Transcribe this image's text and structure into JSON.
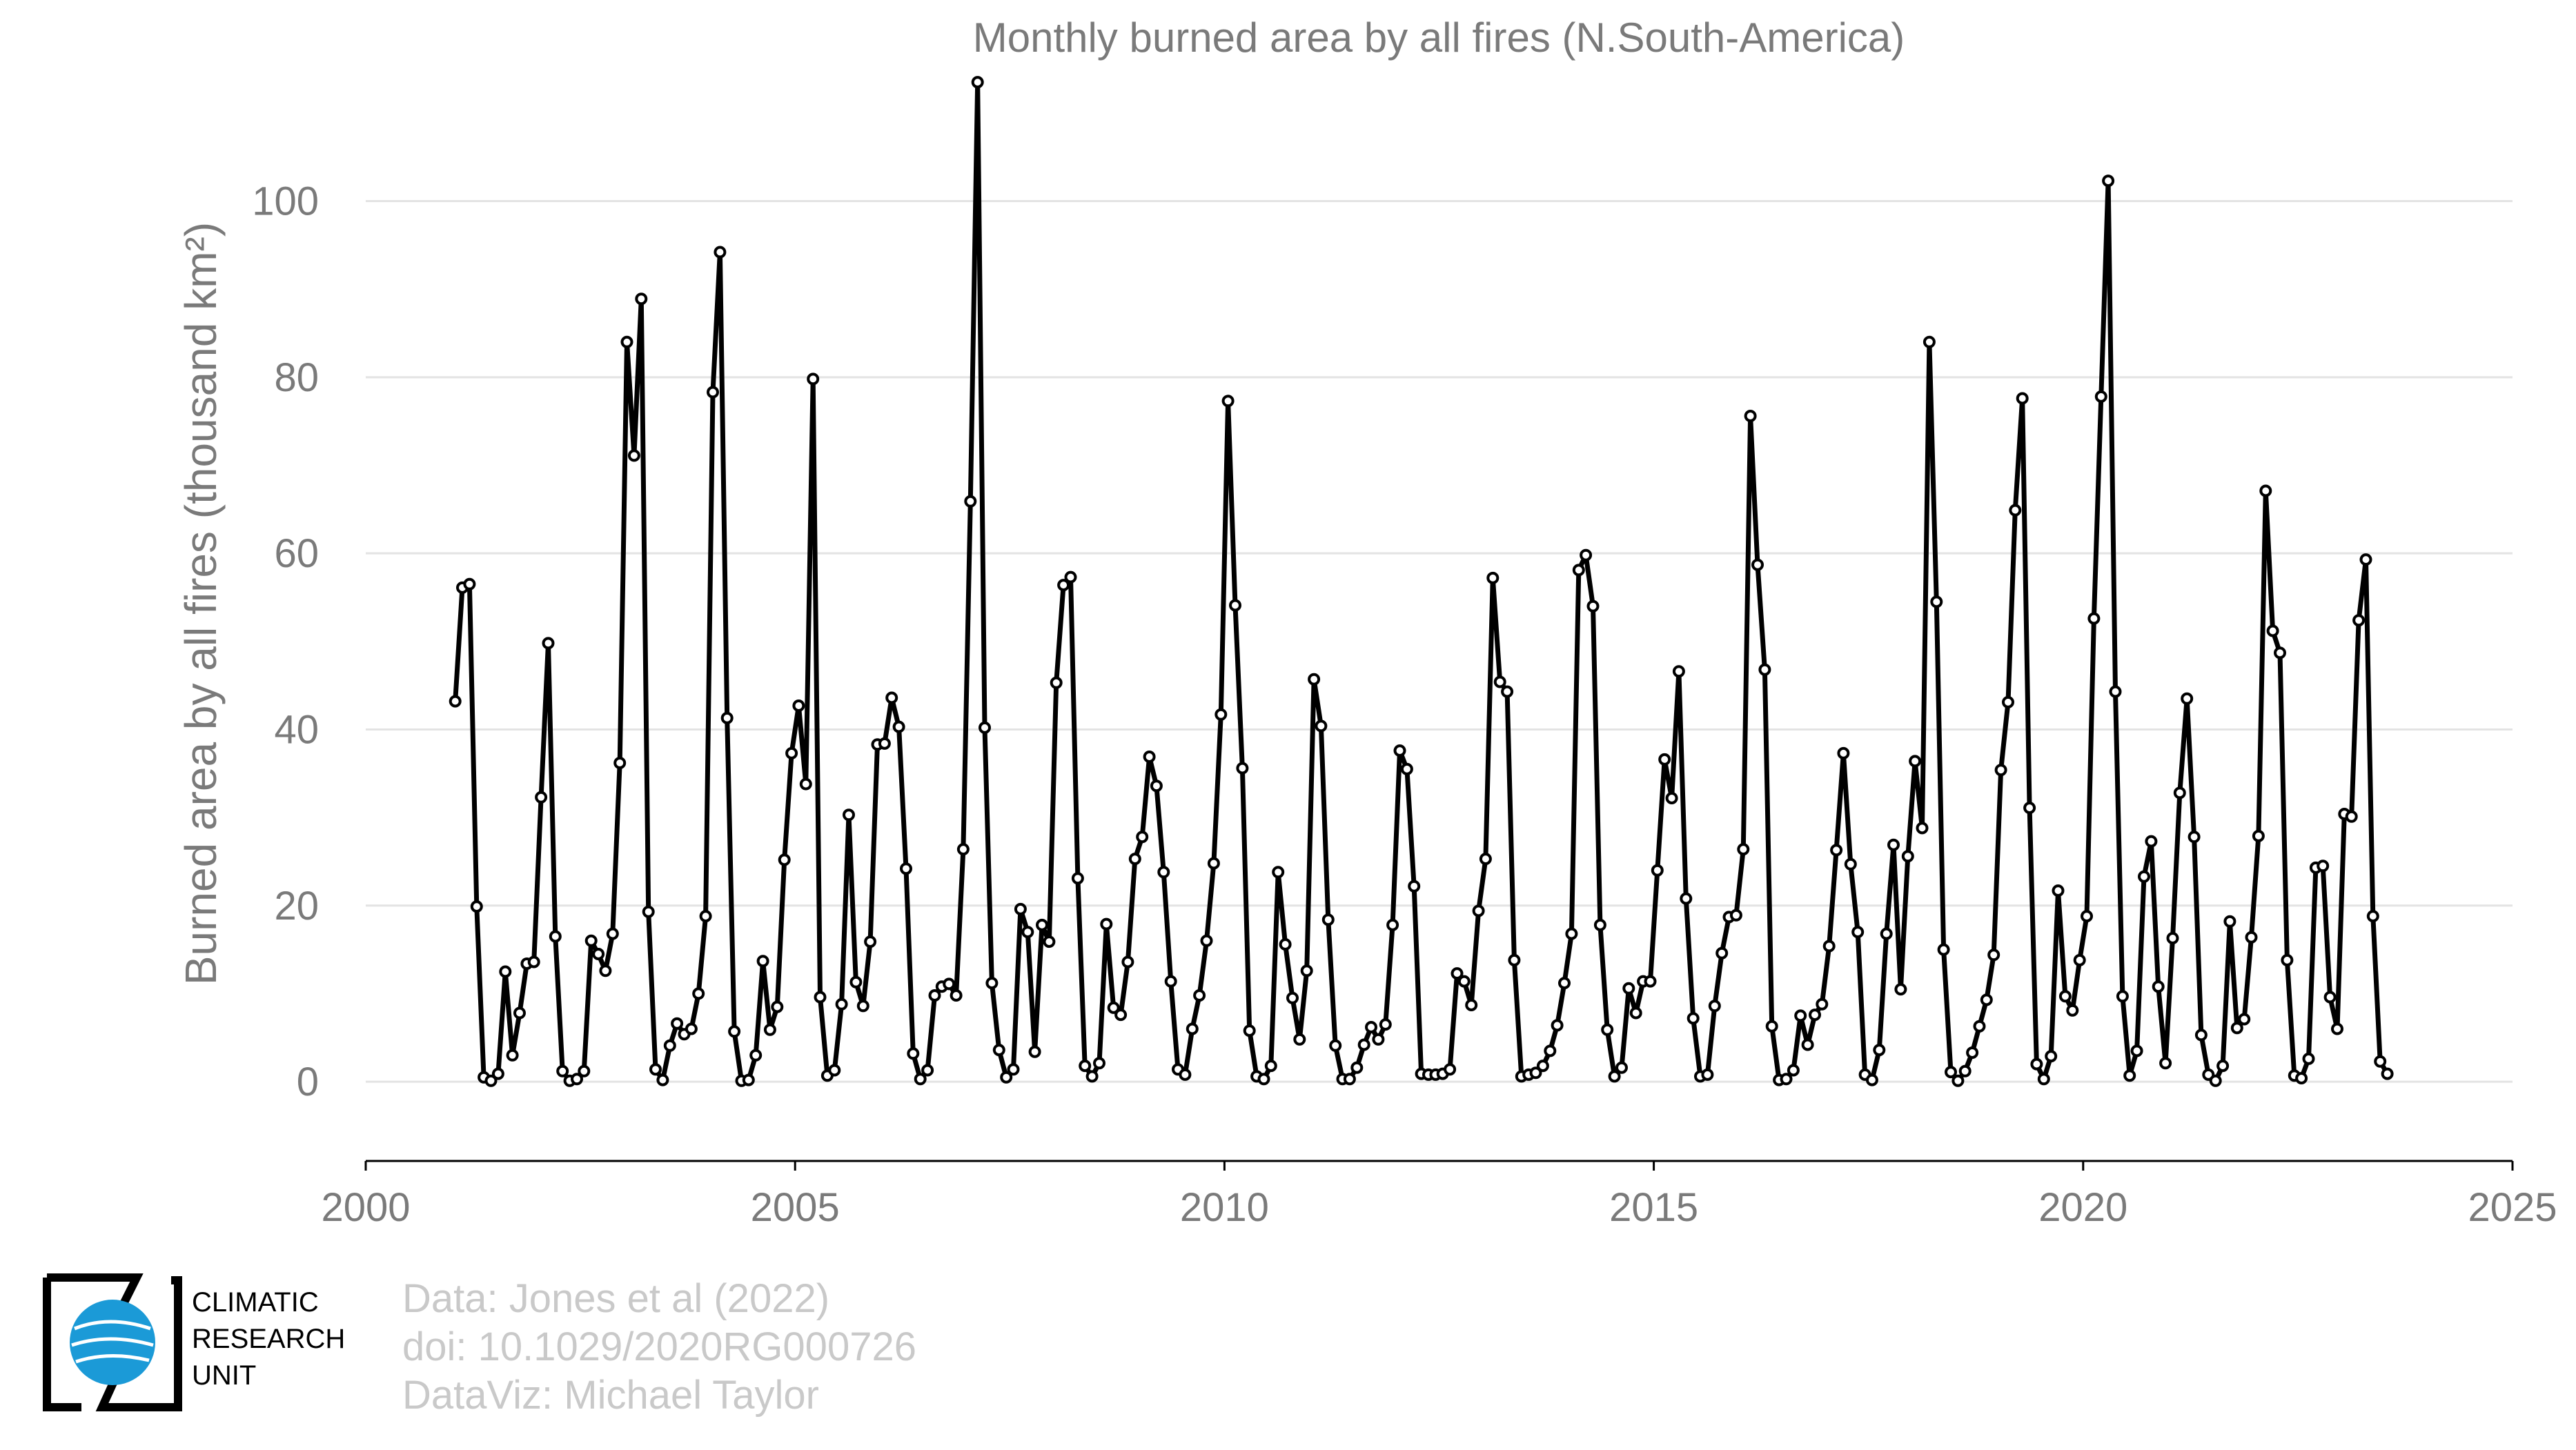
{
  "chart_data": {
    "type": "line",
    "title": "Monthly burned area by all fires (N.South-America)",
    "xlabel": "",
    "ylabel": "Burned area by all fires (thousand km²)",
    "xlim": [
      2000,
      2025
    ],
    "ylim": [
      -9,
      115
    ],
    "xticks": [
      2000,
      2005,
      2010,
      2015,
      2020,
      2025
    ],
    "yticks": [
      0,
      20,
      40,
      60,
      80,
      100
    ],
    "grid": "horizontal",
    "series": [
      {
        "x_start": 2001.042,
        "x_step": 0.0833333,
        "values": [
          43.2,
          56.1,
          56.5,
          19.9,
          0.5,
          0.1,
          0.9,
          12.5,
          3.0,
          7.8,
          13.4,
          13.6,
          32.3,
          49.8,
          16.5,
          1.2,
          0.1,
          0.3,
          1.2,
          16.0,
          14.5,
          12.6,
          16.8,
          36.2,
          84.0,
          71.1,
          88.9,
          19.3,
          1.4,
          0.2,
          4.1,
          6.6,
          5.4,
          6.0,
          10.0,
          18.8,
          78.3,
          94.2,
          41.3,
          5.7,
          0.1,
          0.2,
          3.0,
          13.7,
          5.9,
          8.5,
          25.2,
          37.3,
          42.7,
          33.8,
          79.8,
          9.6,
          0.7,
          1.3,
          8.8,
          30.3,
          11.3,
          8.6,
          15.9,
          38.3,
          38.4,
          43.6,
          40.3,
          24.2,
          3.2,
          0.3,
          1.3,
          9.8,
          10.8,
          11.1,
          9.8,
          26.4,
          65.9,
          113.5,
          40.2,
          11.2,
          3.6,
          0.5,
          1.4,
          19.6,
          17.0,
          3.4,
          17.8,
          15.9,
          45.3,
          56.4,
          57.3,
          23.1,
          1.8,
          0.6,
          2.1,
          17.9,
          8.4,
          7.6,
          13.6,
          25.3,
          27.8,
          36.9,
          33.6,
          23.8,
          11.4,
          1.4,
          0.8,
          6.0,
          9.8,
          16.0,
          24.8,
          41.7,
          77.3,
          54.1,
          35.6,
          5.8,
          0.6,
          0.3,
          1.8,
          23.8,
          15.6,
          9.5,
          4.8,
          12.6,
          45.7,
          40.4,
          18.4,
          4.1,
          0.3,
          0.3,
          1.6,
          4.2,
          6.2,
          4.8,
          6.5,
          17.8,
          37.6,
          35.5,
          22.2,
          0.9,
          0.8,
          0.8,
          0.9,
          1.4,
          12.3,
          11.4,
          8.7,
          19.4,
          25.3,
          57.2,
          45.4,
          44.3,
          13.8,
          0.6,
          0.8,
          1.0,
          1.8,
          3.5,
          6.4,
          11.2,
          16.8,
          58.1,
          59.8,
          54.0,
          17.8,
          5.9,
          0.6,
          1.6,
          10.6,
          7.8,
          11.4,
          11.4,
          24.0,
          36.6,
          32.2,
          46.6,
          20.8,
          7.2,
          0.6,
          0.8,
          8.6,
          14.6,
          18.7,
          18.9,
          26.4,
          75.6,
          58.7,
          46.8,
          6.3,
          0.2,
          0.3,
          1.3,
          7.5,
          4.2,
          7.6,
          8.8,
          15.4,
          26.3,
          37.3,
          24.7,
          17.0,
          0.8,
          0.2,
          3.6,
          16.8,
          26.9,
          10.5,
          25.6,
          36.4,
          28.8,
          84.0,
          54.5,
          15.0,
          1.1,
          0.1,
          1.2,
          3.3,
          6.3,
          9.3,
          14.4,
          35.4,
          43.1,
          64.9,
          77.6,
          31.1,
          2.0,
          0.3,
          2.9,
          21.7,
          9.7,
          8.1,
          13.8,
          18.8,
          52.6,
          77.8,
          102.3,
          44.3,
          9.7,
          0.7,
          3.5,
          23.3,
          27.3,
          10.8,
          2.1,
          16.3,
          32.8,
          43.5,
          27.8,
          5.3,
          0.8,
          0.1,
          1.8,
          18.2,
          6.1,
          7.1,
          16.4,
          27.9,
          67.1,
          51.2,
          48.7,
          13.8,
          0.7,
          0.4,
          2.6,
          24.3,
          24.5,
          9.6,
          6.0,
          30.4,
          30.1,
          52.4,
          59.3,
          18.8,
          2.3,
          0.9
        ]
      }
    ]
  },
  "credits": {
    "line1": "Data: Jones et al (2022)",
    "line2": "doi: 10.1029/2020RG000726",
    "line3": "DataViz: Michael Taylor"
  },
  "logo": {
    "line1": "CLIMATIC",
    "line2": "RESEARCH",
    "line3": "UNIT",
    "colors": {
      "globe": "#1b9ad7",
      "frame": "#000000"
    }
  }
}
